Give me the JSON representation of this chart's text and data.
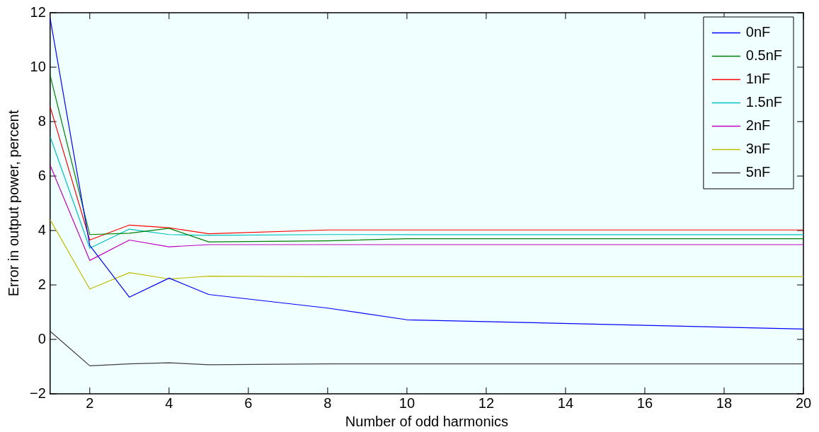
{
  "chart_data": {
    "type": "line",
    "xlabel": "Number of odd harmonics",
    "ylabel": "Error in output power, percent",
    "x": [
      1,
      2,
      3,
      4,
      5,
      8,
      10,
      20
    ],
    "xlim": [
      1,
      20
    ],
    "xticks": [
      2,
      4,
      6,
      8,
      10,
      12,
      14,
      16,
      18,
      20
    ],
    "ylim": [
      -2,
      12
    ],
    "yticks": [
      -2,
      0,
      2,
      4,
      6,
      8,
      10,
      12
    ],
    "grid": false,
    "legend": "top right",
    "marker": "none",
    "line_style": "solid",
    "series": [
      {
        "name": "0nF",
        "color": "#0000ff",
        "values": [
          11.8,
          3.45,
          1.55,
          2.25,
          1.65,
          1.15,
          0.72,
          0.38
        ]
      },
      {
        "name": "0.5nF",
        "color": "#008000",
        "values": [
          9.7,
          3.85,
          3.9,
          4.08,
          3.58,
          3.62,
          3.7,
          3.7
        ]
      },
      {
        "name": "1nF",
        "color": "#ff0000",
        "values": [
          8.55,
          3.65,
          4.2,
          4.1,
          3.88,
          4.02,
          4.02,
          4.02
        ]
      },
      {
        "name": "1.5nF",
        "color": "#00bfbf",
        "values": [
          7.45,
          3.35,
          4.05,
          3.85,
          3.82,
          3.85,
          3.85,
          3.85
        ]
      },
      {
        "name": "2nF",
        "color": "#bf00bf",
        "values": [
          6.4,
          2.9,
          3.65,
          3.4,
          3.48,
          3.48,
          3.48,
          3.48
        ]
      },
      {
        "name": "3nF",
        "color": "#bfbf00",
        "values": [
          4.4,
          1.85,
          2.45,
          2.22,
          2.32,
          2.3,
          2.3,
          2.3
        ]
      },
      {
        "name": "5nF",
        "color": "#404040",
        "values": [
          0.3,
          -0.97,
          -0.9,
          -0.86,
          -0.93,
          -0.9,
          -0.9,
          -0.9
        ]
      }
    ]
  }
}
